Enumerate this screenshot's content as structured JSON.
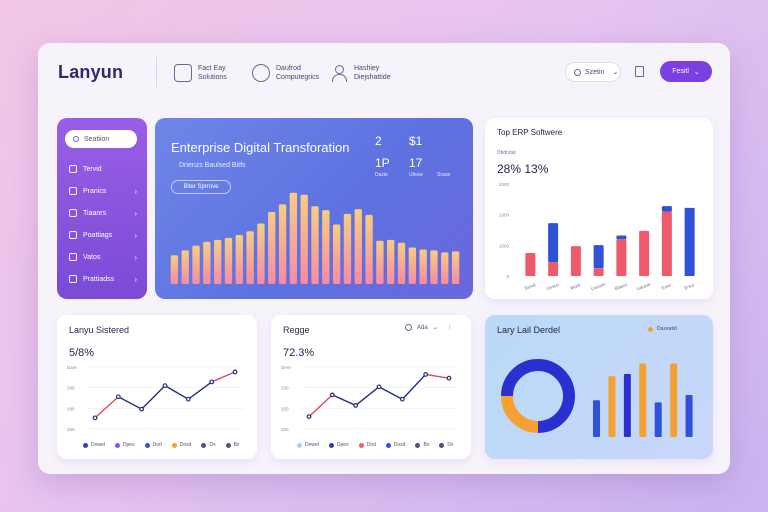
{
  "header": {
    "brand": "Lanyun",
    "nav": [
      {
        "icon": "book-icon",
        "line1": "Fact Eay",
        "line2": "Solutions"
      },
      {
        "icon": "globe-icon",
        "line1": "Daufrod",
        "line2": "Computegrics"
      },
      {
        "icon": "user-icon",
        "line1": "Hashiey",
        "line2": "Diejshattide"
      }
    ],
    "select_label": "Szetin",
    "button_label": "Fesitl"
  },
  "sidebar": {
    "search_label": "Seatiion",
    "items": [
      "Tervid",
      "Pranics",
      "Tiaanrs",
      "Poattiags",
      "Vatos",
      "Prattiadss"
    ]
  },
  "hero": {
    "title": "Enterprise Digital Transforation",
    "subtitle": "Drienzs Baulsed Bitfs",
    "pill": "Biter Sprrove",
    "stats": [
      {
        "value": "2",
        "label": "Dazie"
      },
      {
        "value": "$1",
        "label": "Ulnow"
      },
      {
        "value": "1P",
        "label": "Sraoe"
      },
      {
        "value": "17",
        "label": "Sraoe"
      }
    ],
    "bars": [
      0.3,
      0.35,
      0.4,
      0.44,
      0.46,
      0.48,
      0.51,
      0.55,
      0.63,
      0.75,
      0.83,
      0.95,
      0.93,
      0.81,
      0.77,
      0.62,
      0.73,
      0.78,
      0.72,
      0.45,
      0.46,
      0.43,
      0.38,
      0.36,
      0.35,
      0.33,
      0.34
    ]
  },
  "top_chart": {
    "title": "Top ERP Softwere",
    "subtitle": "Dbdrstal",
    "value": "28% 13%",
    "chart_data": {
      "type": "bar",
      "stacked": true,
      "categories": [
        "Sarvd",
        "Unsco",
        "Mortl",
        "Uarosh",
        "Biaarv",
        "Uarosh",
        "Ersvi",
        "Ersvi"
      ],
      "series": [
        {
          "name": "Red",
          "color": "#ef5a6a",
          "values": [
            500,
            300,
            650,
            170,
            800,
            980,
            1400,
            0
          ]
        },
        {
          "name": "Blue",
          "color": "#2f52d9",
          "values": [
            0,
            850,
            0,
            500,
            80,
            0,
            120,
            1480
          ]
        }
      ],
      "ylim": [
        0,
        2000
      ],
      "yticks": [
        "0",
        "1000",
        "1000",
        "2000"
      ]
    }
  },
  "line_card_1": {
    "title": "Lanyu Sistered",
    "value": "5/8%",
    "yticks": [
      "Dare",
      "180",
      "180",
      "150"
    ],
    "legend": [
      {
        "label": "Dowel",
        "color": "#2f3fb0"
      },
      {
        "label": "Dpes",
        "color": "#8a54e0"
      },
      {
        "label": "Dod",
        "color": "#2f52d9"
      },
      {
        "label": "Dosd",
        "color": "#f4a032"
      },
      {
        "label": "Dx",
        "color": "#56507a"
      },
      {
        "label": "Bx",
        "color": "#56507a"
      }
    ],
    "chart_data": {
      "type": "line",
      "x": [
        1,
        2,
        3,
        4,
        5,
        6,
        7
      ],
      "series": [
        {
          "name": "Growth",
          "values": [
            18,
            52,
            32,
            70,
            48,
            76,
            92
          ]
        }
      ],
      "ylim": [
        0,
        100
      ]
    }
  },
  "line_card_2": {
    "title": "Regge",
    "value": "72.3%",
    "dropdown": "Ada",
    "yticks": [
      "Dere",
      "150",
      "150",
      "150"
    ],
    "legend": [
      {
        "label": "Dowel",
        "color": "#a8d4ef"
      },
      {
        "label": "Dpes",
        "color": "#2f3fb0"
      },
      {
        "label": "Dod",
        "color": "#ef5a6a"
      },
      {
        "label": "Dosd",
        "color": "#2f52d9"
      },
      {
        "label": "Bx",
        "color": "#56507a"
      },
      {
        "label": "Dx",
        "color": "#56507a"
      }
    ],
    "chart_data": {
      "type": "line",
      "x": [
        1,
        2,
        3,
        4,
        5,
        6,
        7
      ],
      "series": [
        {
          "name": "Trend",
          "values": [
            20,
            55,
            38,
            68,
            48,
            88,
            82
          ]
        }
      ],
      "ylim": [
        0,
        100
      ]
    }
  },
  "donut_card": {
    "title": "Lary Lail Derdel",
    "legend": "Dazeatid",
    "chart_data": [
      {
        "type": "pie",
        "labels": [
          "Navy",
          "Orange"
        ],
        "values": [
          75,
          25
        ],
        "colors": [
          "#2b2fcf",
          "#f4a032"
        ]
      },
      {
        "type": "bar",
        "values": [
          35,
          58,
          60,
          70,
          33,
          70,
          40
        ],
        "colors": [
          "#2f52d9",
          "#f4a032",
          "#2b2fcf",
          "#f4a032",
          "#2f52d9",
          "#f4a032",
          "#2f52d9"
        ]
      }
    ]
  }
}
